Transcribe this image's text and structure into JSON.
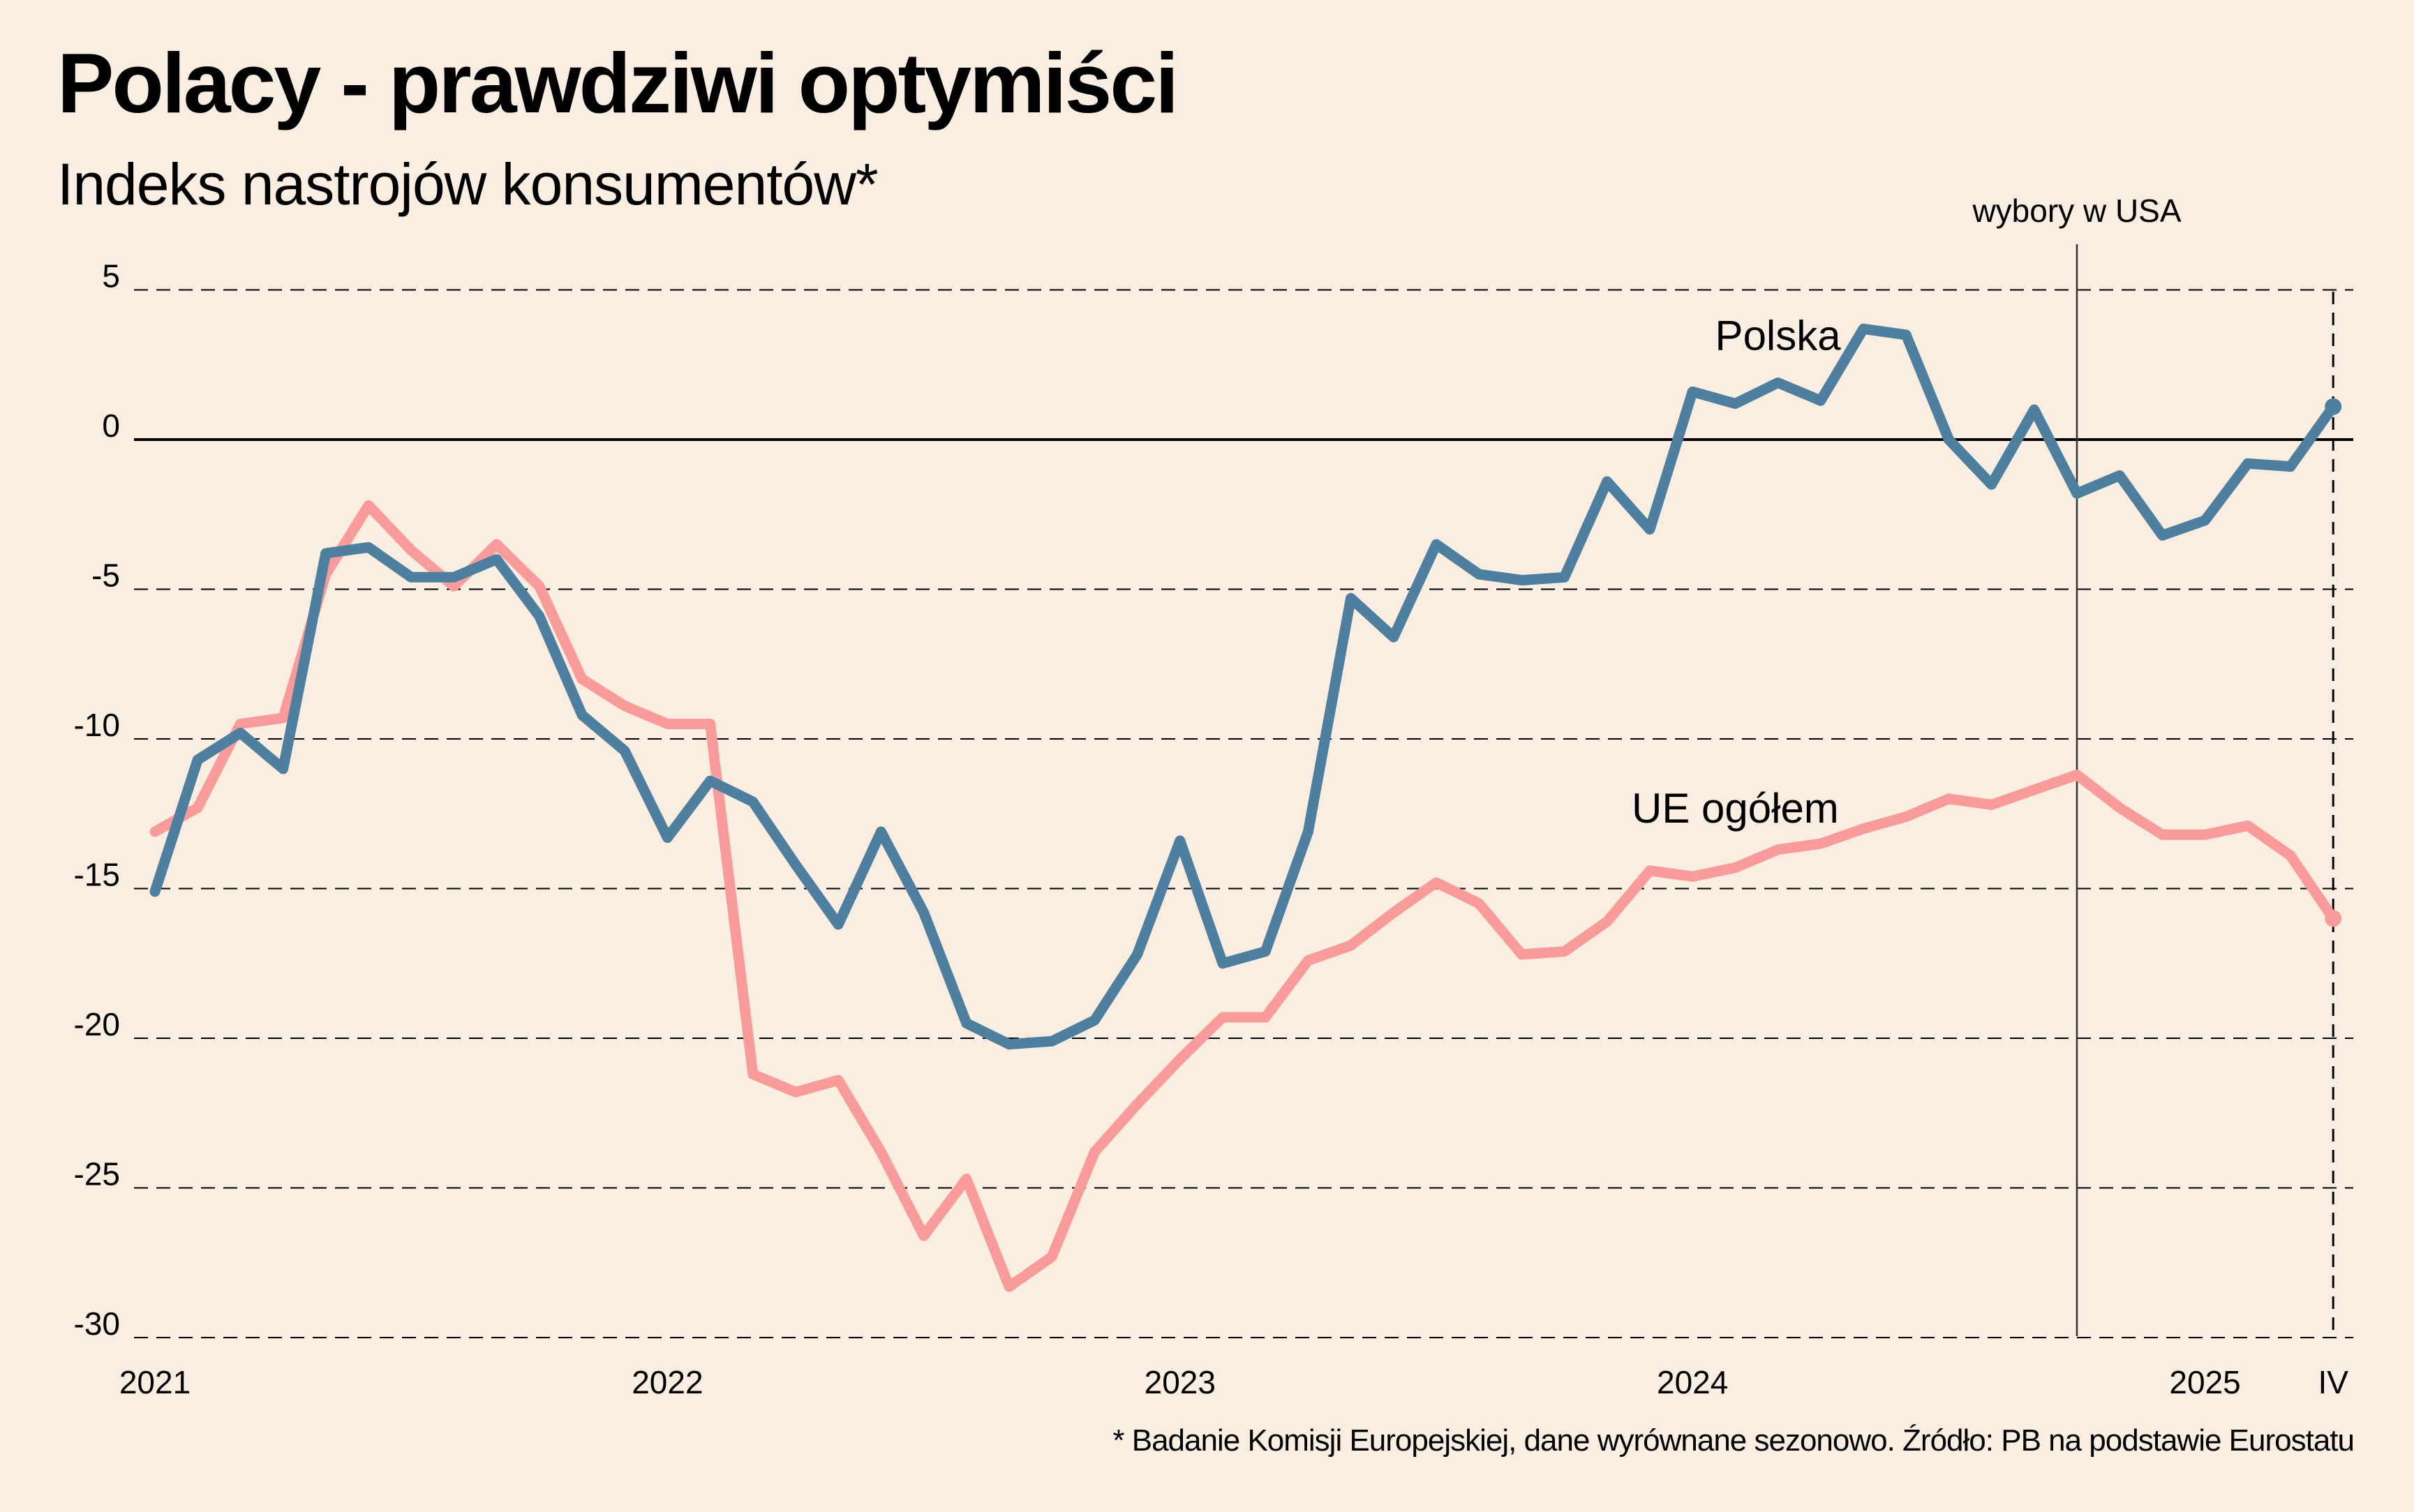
{
  "header": {
    "title": "Polacy - prawdziwi optymiści",
    "subtitle": "Indeks nastrojów konsumentów*"
  },
  "footnote": "* Badanie Komisji Europejskiej, dane wyrównane sezonowo. Źródło: PB na podstawie Eurostatu",
  "colors": {
    "background": "#FAEDE1",
    "polska": "#4F7F9F",
    "ue": "#F99B9B",
    "grid": "#000000"
  },
  "chart_data": {
    "type": "line",
    "title": "Polacy - prawdziwi optymiści",
    "subtitle": "Indeks nastrojów konsumentów*",
    "xlabel": "",
    "ylabel": "",
    "x_start": "2021-01",
    "x_end": "2025-04",
    "x_frequency": "monthly",
    "ylim": [
      -30,
      5
    ],
    "yticks": [
      5,
      0,
      -5,
      -10,
      -15,
      -20,
      -25,
      -30
    ],
    "ytick_labels": [
      "5",
      "0",
      "-5",
      "-10",
      "-15",
      "-20",
      "-25",
      "-30"
    ],
    "xtick_labels": [
      {
        "label": "2021",
        "index": 0
      },
      {
        "label": "2022",
        "index": 12
      },
      {
        "label": "2023",
        "index": 24
      },
      {
        "label": "2024",
        "index": 36
      },
      {
        "label": "2025",
        "index": 48
      },
      {
        "label": "IV",
        "index": 51
      }
    ],
    "grid": "horizontal dashed; solid line at 0",
    "series": [
      {
        "name": "Polska",
        "label": "Polska",
        "label_anchor_index": 38,
        "label_anchor_value": 3.0,
        "values": [
          -15.1,
          -10.7,
          -9.8,
          -11.0,
          -3.8,
          -3.6,
          -4.6,
          -4.6,
          -4.0,
          -5.9,
          -9.2,
          -10.4,
          -13.3,
          -11.4,
          -12.1,
          -14.2,
          -16.2,
          -13.1,
          -15.8,
          -19.5,
          -20.2,
          -20.1,
          -19.4,
          -17.2,
          -13.4,
          -17.5,
          -17.1,
          -13.1,
          -5.3,
          -6.6,
          -3.5,
          -4.5,
          -4.7,
          -4.6,
          -1.4,
          -3.0,
          1.6,
          1.2,
          1.9,
          1.3,
          3.7,
          3.5,
          0.0,
          -1.5,
          1.0,
          -1.8,
          -1.2,
          -3.2,
          -2.7,
          -0.8,
          -0.9,
          1.1
        ]
      },
      {
        "name": "UE ogółem",
        "label": "UE ogółem",
        "label_anchor_index": 37,
        "label_anchor_value": -12.8,
        "values": [
          -13.1,
          -12.3,
          -9.5,
          -9.3,
          -4.5,
          -2.2,
          -3.7,
          -4.9,
          -3.5,
          -4.9,
          -8.0,
          -8.9,
          -9.5,
          -9.5,
          -21.2,
          -21.8,
          -21.4,
          -23.8,
          -26.6,
          -24.7,
          -28.3,
          -27.3,
          -23.8,
          -22.2,
          -20.7,
          -19.3,
          -19.3,
          -17.4,
          -16.9,
          -15.8,
          -14.8,
          -15.5,
          -17.2,
          -17.1,
          -16.1,
          -14.4,
          -14.6,
          -14.3,
          -13.7,
          -13.5,
          -13.0,
          -12.6,
          -12.0,
          -12.2,
          -11.7,
          -11.2,
          -12.3,
          -13.2,
          -13.2,
          -12.9,
          -13.9,
          -16.0
        ]
      }
    ],
    "annotations": [
      {
        "text": "wybory w USA",
        "type": "vertical-line",
        "index": 45
      },
      {
        "text": "",
        "type": "vertical-dashed-line",
        "index": 51
      }
    ]
  }
}
